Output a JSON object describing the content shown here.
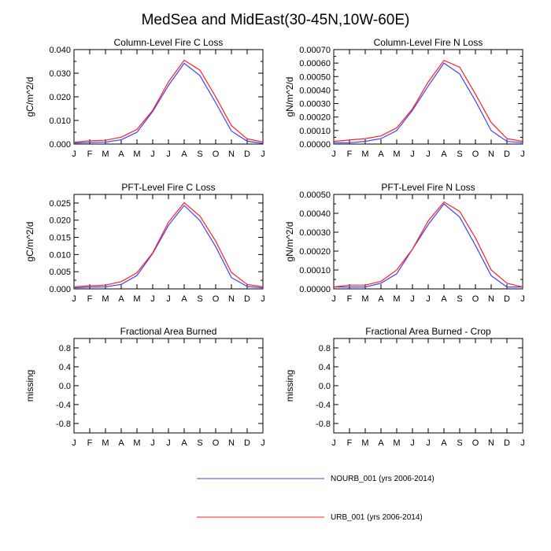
{
  "title": "MedSea and MidEast(30-45N,10W-60E)",
  "months": [
    "J",
    "F",
    "M",
    "A",
    "M",
    "J",
    "J",
    "A",
    "S",
    "O",
    "N",
    "D",
    "J"
  ],
  "legend": [
    {
      "label": "NOURB_001 (yrs 2006-2014)",
      "color": "#4040ff"
    },
    {
      "label": "URB_001 (yrs 2006-2014)",
      "color": "#ff2020"
    }
  ],
  "chart_data": [
    {
      "type": "line",
      "title": "Column-Level Fire C Loss",
      "ylabel": "gC/m^2/d",
      "ylim": [
        0,
        0.04
      ],
      "yticks": [
        0,
        0.01,
        0.02,
        0.03,
        0.04
      ],
      "ytick_labels": [
        "0.000",
        "0.010",
        "0.020",
        "0.030",
        "0.040"
      ],
      "series": [
        {
          "name": "NOURB_001",
          "values": [
            0.0004,
            0.0007,
            0.0008,
            0.0018,
            0.005,
            0.0138,
            0.0248,
            0.0342,
            0.029,
            0.0175,
            0.0055,
            0.0012,
            0.0003
          ]
        },
        {
          "name": "URB_001",
          "values": [
            0.0008,
            0.0014,
            0.0016,
            0.0029,
            0.0062,
            0.0143,
            0.0263,
            0.0355,
            0.0313,
            0.02,
            0.0078,
            0.0022,
            0.0009
          ]
        }
      ]
    },
    {
      "type": "line",
      "title": "Column-Level Fire N Loss",
      "ylabel": "gN/m^2/d",
      "ylim": [
        0,
        0.0007
      ],
      "yticks": [
        0,
        0.0001,
        0.0002,
        0.0003,
        0.0004,
        0.0005,
        0.0006,
        0.0007
      ],
      "ytick_labels": [
        "0.00000",
        "0.00010",
        "0.00020",
        "0.00030",
        "0.00040",
        "0.00050",
        "0.00060",
        "0.00070"
      ],
      "series": [
        {
          "name": "NOURB_001",
          "values": [
            1e-05,
            1e-05,
            2e-05,
            4e-05,
            0.0001,
            0.00025,
            0.00043,
            0.0006,
            0.00052,
            0.00032,
            0.0001,
            2e-05,
            1e-05
          ]
        },
        {
          "name": "URB_001",
          "values": [
            2e-05,
            3e-05,
            4e-05,
            6e-05,
            0.00012,
            0.00026,
            0.00046,
            0.00062,
            0.00057,
            0.00037,
            0.00016,
            4e-05,
            2e-05
          ]
        }
      ]
    },
    {
      "type": "line",
      "title": "PFT-Level Fire C Loss",
      "ylabel": "gC/m^2/d",
      "ylim": [
        0,
        0.0275
      ],
      "yticks": [
        0,
        0.005,
        0.01,
        0.015,
        0.02,
        0.025
      ],
      "ytick_labels": [
        "0.000",
        "0.005",
        "0.010",
        "0.015",
        "0.020",
        "0.025"
      ],
      "series": [
        {
          "name": "NOURB_001",
          "values": [
            0.0003,
            0.0005,
            0.0006,
            0.0013,
            0.0039,
            0.0103,
            0.0185,
            0.0243,
            0.0199,
            0.0123,
            0.0033,
            0.0007,
            0.0003
          ]
        },
        {
          "name": "URB_001",
          "values": [
            0.0006,
            0.0009,
            0.0011,
            0.0021,
            0.0047,
            0.0105,
            0.0194,
            0.0251,
            0.0212,
            0.0139,
            0.0048,
            0.0013,
            0.0006
          ]
        }
      ]
    },
    {
      "type": "line",
      "title": "PFT-Level Fire N Loss",
      "ylabel": "gN/m^2/d",
      "ylim": [
        0,
        0.0005
      ],
      "yticks": [
        0,
        0.0001,
        0.0002,
        0.0003,
        0.0004,
        0.0005
      ],
      "ytick_labels": [
        "0.00000",
        "0.00010",
        "0.00020",
        "0.00030",
        "0.00040",
        "0.00050"
      ],
      "series": [
        {
          "name": "NOURB_001",
          "values": [
            1e-05,
            1e-05,
            1e-05,
            3e-05,
            8e-05,
            0.00021,
            0.00034,
            0.00045,
            0.00038,
            0.00023,
            7e-05,
            1e-05,
            1e-05
          ]
        },
        {
          "name": "URB_001",
          "values": [
            1e-05,
            2e-05,
            2e-05,
            4e-05,
            0.0001,
            0.00021,
            0.00036,
            0.00046,
            0.00041,
            0.00027,
            0.0001,
            3e-05,
            1e-05
          ]
        }
      ]
    },
    {
      "type": "line",
      "title": "Fractional Area Burned",
      "ylabel": "missing",
      "ylim": [
        -1,
        1
      ],
      "yticks": [
        -0.8,
        -0.4,
        0,
        0.4,
        0.8
      ],
      "ytick_labels": [
        "-0.8",
        "-0.4",
        "0.0",
        "0.4",
        "0.8"
      ],
      "series": []
    },
    {
      "type": "line",
      "title": "Fractional Area Burned - Crop",
      "ylabel": "missing",
      "ylim": [
        -1,
        1
      ],
      "yticks": [
        -0.8,
        -0.4,
        0,
        0.4,
        0.8
      ],
      "ytick_labels": [
        "-0.8",
        "-0.4",
        "0.0",
        "0.4",
        "0.8"
      ],
      "series": []
    }
  ]
}
